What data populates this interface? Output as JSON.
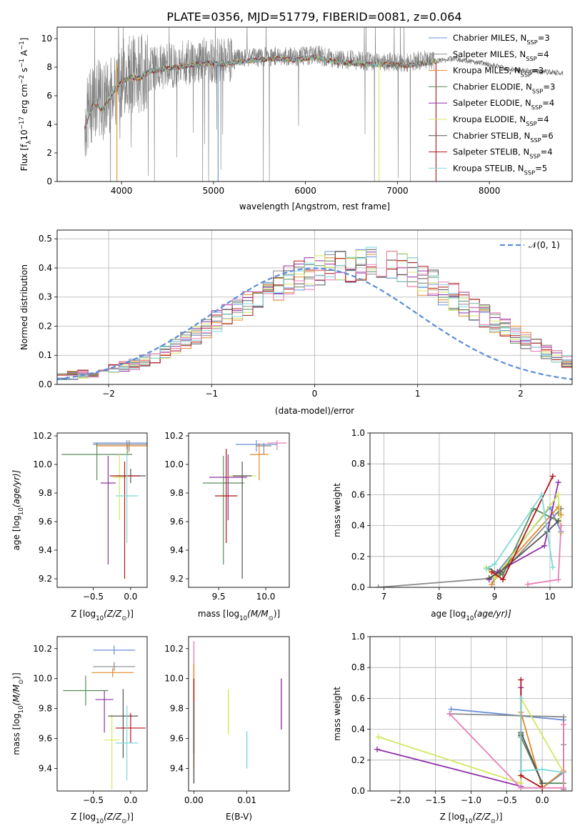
{
  "chart_data": [
    {
      "id": "spectrum",
      "type": "line",
      "title": "PLATE=0356, MJD=51779, FIBERID=0081, z=0.064",
      "xlabel": "wavelength [Angstrom, rest frame]",
      "ylabel": "Flux [f",
      "ylabel_sub": "λ",
      "ylabel_rest": "10",
      "ylabel_exp": "−17",
      "ylabel_units": " erg cm",
      "ylabel_units_exp": "−2",
      "ylabel_s": " s",
      "ylabel_s_exp": "−1",
      "ylabel_A": " A",
      "ylabel_A_exp": "−1",
      "ylabel_close": "]",
      "xlim": [
        3300,
        8900
      ],
      "ylim": [
        0,
        10.8
      ],
      "xticks": [
        "4000",
        "5000",
        "6000",
        "7000",
        "8000"
      ],
      "xtick_values": [
        4000,
        5000,
        6000,
        7000,
        8000
      ],
      "yticks": [
        "0",
        "2",
        "4",
        "6",
        "8",
        "10"
      ],
      "ytick_values": [
        0,
        2,
        4,
        6,
        8,
        10
      ],
      "grid": false,
      "legend_position": "top-right",
      "data_envelope": {
        "x": [
          3600,
          3700,
          3800,
          3900,
          4000,
          4100,
          4200,
          4300,
          4500,
          4700,
          4900,
          5100,
          5300,
          5500,
          5700,
          5900,
          6100,
          6300,
          6500,
          6700,
          6900,
          7100,
          7300,
          7400
        ],
        "y": [
          4.0,
          6.0,
          5.5,
          6.5,
          7.2,
          7.6,
          7.5,
          7.9,
          8.1,
          8.3,
          8.5,
          8.4,
          8.6,
          8.7,
          8.8,
          8.7,
          8.9,
          8.6,
          8.5,
          8.4,
          8.4,
          8.3,
          8.5,
          8.4
        ]
      },
      "model_envelope": {
        "x": [
          3600,
          3700,
          3800,
          3900,
          4000,
          4100,
          4200,
          4300,
          4500,
          4700,
          4900,
          5100,
          5300,
          5500,
          5700,
          5900,
          6100,
          6300,
          6500,
          6700,
          6900,
          7100,
          7300,
          7600,
          7900,
          8200,
          8500,
          8800
        ],
        "y": [
          3.8,
          5.5,
          5.0,
          6.2,
          7.0,
          7.3,
          7.2,
          7.7,
          7.9,
          8.1,
          8.3,
          8.2,
          8.4,
          8.5,
          8.6,
          8.5,
          8.7,
          8.4,
          8.3,
          8.2,
          8.2,
          8.1,
          8.3,
          8.6,
          8.3,
          7.9,
          7.7,
          7.6
        ]
      }
    },
    {
      "id": "residuals",
      "type": "histogram",
      "xlabel": "(data-model)/error",
      "ylabel": "Normed distribution",
      "xlim": [
        -2.5,
        2.5
      ],
      "ylim": [
        0,
        0.53
      ],
      "xticks": [
        "−2",
        "−1",
        "0",
        "1",
        "2"
      ],
      "xtick_values": [
        -2,
        -1,
        0,
        1,
        2
      ],
      "yticks": [
        "0.0",
        "0.1",
        "0.2",
        "0.3",
        "0.4",
        "0.5"
      ],
      "ytick_values": [
        0,
        0.1,
        0.2,
        0.3,
        0.4,
        0.5
      ],
      "grid": true,
      "legend_position": "top-right",
      "legend_label": "𝒩(0, 1)",
      "bin_width": 0.1,
      "bin_start": -2.5,
      "base_values": [
        0.03,
        0.03,
        0.035,
        0.04,
        0.05,
        0.055,
        0.06,
        0.07,
        0.08,
        0.095,
        0.11,
        0.13,
        0.15,
        0.17,
        0.19,
        0.22,
        0.24,
        0.26,
        0.28,
        0.3,
        0.32,
        0.34,
        0.355,
        0.37,
        0.38,
        0.39,
        0.4,
        0.405,
        0.41,
        0.42,
        0.43,
        0.42,
        0.41,
        0.4,
        0.38,
        0.36,
        0.34,
        0.32,
        0.3,
        0.28,
        0.255,
        0.235,
        0.21,
        0.19,
        0.17,
        0.15,
        0.13,
        0.11,
        0.095,
        0.08,
        0.07,
        0.06,
        0.05,
        0.045,
        0.04,
        0.035,
        0.03,
        0.03
      ]
    },
    {
      "id": "age_vs_Z",
      "type": "errorbar",
      "xlabel": "Z [log",
      "xlabel_sub": "10",
      "xlabel_rest": "(Z/Z",
      "xlabel_sun": "⊙",
      "xlabel_close": ")]",
      "ylabel": "age  [log",
      "ylabel_sub": "10",
      "ylabel_rest": "(age/yr)]",
      "xlim": [
        -0.98,
        0.22
      ],
      "ylim": [
        9.14,
        10.22
      ],
      "xticks": [
        "−0.5",
        "0.0"
      ],
      "xtick_values": [
        -0.5,
        0.0
      ],
      "yticks": [
        "9.2",
        "9.4",
        "9.6",
        "9.8",
        "10.0",
        "10.2"
      ],
      "ytick_values": [
        9.2,
        9.4,
        9.6,
        9.8,
        10.0,
        10.2
      ],
      "points": [
        {
          "x": -0.05,
          "y": 10.15,
          "xerr": 0.45,
          "yerr": [
            0.05,
            0.02
          ]
        },
        {
          "x": -0.02,
          "y": 10.14,
          "xerr": 0.48,
          "yerr": [
            0.05,
            0.03
          ]
        },
        {
          "x": -0.04,
          "y": 10.13,
          "xerr": 0.42,
          "yerr": [
            0.06,
            0.02
          ]
        },
        {
          "x": -0.45,
          "y": 10.07,
          "xerr": 0.47,
          "yerr": [
            0.18,
            0.08
          ]
        },
        {
          "x": -0.3,
          "y": 9.87,
          "xerr": 0.1,
          "yerr": [
            0.57,
            0.19
          ]
        },
        {
          "x": -0.15,
          "y": 9.91,
          "xerr": 0.09,
          "yerr": [
            0.3,
            0.16
          ]
        },
        {
          "x": 0.0,
          "y": 9.92,
          "xerr": 0.2,
          "yerr": [
            0.05,
            0.05
          ]
        },
        {
          "x": -0.08,
          "y": 9.92,
          "xerr": 0.2,
          "yerr": [
            0.72,
            0.1
          ]
        },
        {
          "x": -0.05,
          "y": 9.78,
          "xerr": 0.15,
          "yerr": [
            0.33,
            0.33
          ]
        }
      ]
    },
    {
      "id": "age_vs_mass",
      "type": "errorbar",
      "xlabel": "mass [log",
      "xlabel_sub": "10",
      "xlabel_rest": "(M/M",
      "xlabel_sun": "⊙",
      "xlabel_close": ")]",
      "xlim": [
        9.18,
        10.25
      ],
      "ylim": [
        9.14,
        10.22
      ],
      "xticks": [
        "9.5",
        "10.0"
      ],
      "xtick_values": [
        9.5,
        10.0
      ],
      "yticks": [
        "9.2",
        "9.4",
        "9.6",
        "9.8",
        "10.0",
        "10.2"
      ],
      "ytick_values": [
        9.2,
        9.4,
        9.6,
        9.8,
        10.0,
        10.2
      ],
      "points": [
        {
          "x": 10.12,
          "y": 10.15,
          "xerr": 0.1,
          "yerr": [
            0.05,
            0.02
          ]
        },
        {
          "x": 9.9,
          "y": 10.14,
          "xerr": 0.22,
          "yerr": [
            0.05,
            0.03
          ]
        },
        {
          "x": 9.98,
          "y": 10.13,
          "xerr": 0.08,
          "yerr": [
            0.06,
            0.02
          ]
        },
        {
          "x": 9.93,
          "y": 10.07,
          "xerr": 0.1,
          "yerr": [
            0.18,
            0.08
          ]
        },
        {
          "x": 9.55,
          "y": 9.87,
          "xerr": 0.22,
          "yerr": [
            0.57,
            0.19
          ]
        },
        {
          "x": 9.6,
          "y": 9.91,
          "xerr": 0.2,
          "yerr": [
            0.3,
            0.16
          ]
        },
        {
          "x": 9.75,
          "y": 9.92,
          "xerr": 0.15,
          "yerr": [
            0.05,
            0.05
          ]
        },
        {
          "x": 9.75,
          "y": 9.92,
          "xerr": 0.1,
          "yerr": [
            0.72,
            0.1
          ]
        },
        {
          "x": 9.58,
          "y": 9.78,
          "xerr": 0.12,
          "yerr": [
            0.33,
            0.33
          ]
        }
      ]
    },
    {
      "id": "weight_vs_age",
      "type": "line",
      "xlabel": "age  [log",
      "xlabel_sub": "10",
      "xlabel_rest": "(age/yr)]",
      "ylabel": "mass weight",
      "xlim": [
        6.75,
        10.4
      ],
      "ylim": [
        0,
        1
      ],
      "xticks": [
        "7",
        "8",
        "9",
        "10"
      ],
      "xtick_values": [
        7,
        8,
        9,
        10
      ],
      "yticks": [
        "0.0",
        "0.2",
        "0.4",
        "0.6",
        "0.8",
        "1.0"
      ],
      "ytick_values": [
        0,
        0.2,
        0.4,
        0.6,
        0.8,
        1.0
      ],
      "grid": true,
      "series": [
        {
          "x": [
            8.95,
            9.05,
            10.0,
            10.2
          ],
          "y": [
            0.02,
            0.1,
            0.52,
            0.36
          ]
        },
        {
          "x": [
            6.9,
            9.0,
            9.1,
            10.2,
            10.15
          ],
          "y": [
            0.0,
            0.06,
            0.08,
            0.51,
            0.48
          ]
        },
        {
          "x": [
            8.95,
            9.1,
            10.15,
            10.2
          ],
          "y": [
            0.02,
            0.1,
            0.52,
            0.47
          ]
        },
        {
          "x": [
            8.9,
            9.15,
            9.7,
            10.15
          ],
          "y": [
            0.12,
            0.08,
            0.51,
            0.43
          ]
        },
        {
          "x": [
            8.9,
            9.05,
            9.9,
            10.15
          ],
          "y": [
            0.05,
            0.1,
            0.27,
            0.68
          ]
        },
        {
          "x": [
            8.85,
            9.0,
            10.15,
            10.2
          ],
          "y": [
            0.13,
            0.06,
            0.6,
            0.35
          ]
        },
        {
          "x": [
            8.9,
            9.1,
            9.95,
            10.15
          ],
          "y": [
            0.06,
            0.1,
            0.36,
            0.43
          ]
        },
        {
          "x": [
            8.95,
            9.15,
            10.05
          ],
          "y": [
            0.1,
            0.05,
            0.72
          ]
        },
        {
          "x": [
            8.85,
            9.0,
            9.85,
            10.05
          ],
          "y": [
            0.12,
            0.15,
            0.6,
            0.13
          ]
        },
        {
          "x": [
            9.6,
            10.15,
            10.2
          ],
          "y": [
            0.02,
            0.05,
            0.4
          ]
        }
      ]
    },
    {
      "id": "mass_vs_Z",
      "type": "errorbar",
      "xlabel": "Z [log",
      "xlabel_sub": "10",
      "xlabel_rest": "(Z/Z",
      "xlabel_sun": "⊙",
      "xlabel_close": ")]",
      "ylabel": "mass [log",
      "ylabel_sub": "10",
      "ylabel_rest": "(M/M",
      "ylabel_sun": "⊙",
      "ylabel_close": ")]",
      "xlim": [
        -0.98,
        0.22
      ],
      "ylim": [
        9.25,
        10.28
      ],
      "xticks": [
        "−0.5",
        "0.0"
      ],
      "xtick_values": [
        -0.5,
        0.0
      ],
      "yticks": [
        "9.4",
        "9.6",
        "9.8",
        "10.0",
        "10.2"
      ],
      "ytick_values": [
        9.4,
        9.6,
        9.8,
        10.0,
        10.2
      ],
      "points": [
        {
          "x": -0.22,
          "y": 10.19,
          "xerr": 0.28,
          "yerr": [
            0.03,
            0.03
          ]
        },
        {
          "x": -0.22,
          "y": 10.08,
          "xerr": 0.28,
          "yerr": [
            0.03,
            0.03
          ]
        },
        {
          "x": -0.24,
          "y": 10.04,
          "xerr": 0.28,
          "yerr": [
            0.03,
            0.03
          ]
        },
        {
          "x": -0.6,
          "y": 9.92,
          "xerr": 0.3,
          "yerr": [
            0.1,
            0.1
          ]
        },
        {
          "x": -0.35,
          "y": 9.86,
          "xerr": 0.12,
          "yerr": [
            0.22,
            0.06
          ]
        },
        {
          "x": -0.25,
          "y": 9.59,
          "xerr": 0.1,
          "yerr": [
            0.33,
            0.17
          ]
        },
        {
          "x": -0.1,
          "y": 9.75,
          "xerr": 0.2,
          "yerr": [
            0.28,
            0.18
          ]
        },
        {
          "x": 0.0,
          "y": 9.67,
          "xerr": 0.2,
          "yerr": [
            0.1,
            0.1
          ]
        },
        {
          "x": -0.05,
          "y": 9.57,
          "xerr": 0.15,
          "yerr": [
            0.25,
            0.25
          ]
        }
      ]
    },
    {
      "id": "mass_vs_ebv",
      "type": "errorbar",
      "xlabel": "E(B-V)",
      "xlim": [
        -0.001,
        0.018
      ],
      "ylim": [
        9.25,
        10.28
      ],
      "xticks": [
        "0.00",
        "0.01"
      ],
      "xtick_values": [
        0.0,
        0.01
      ],
      "yticks": [
        "9.4",
        "9.6",
        "9.8",
        "10.0",
        "10.2"
      ],
      "ytick_values": [
        9.4,
        9.6,
        9.8,
        10.0,
        10.2
      ],
      "points": [
        {
          "x": 0.0,
          "y": 10.1,
          "xerr": 0.0,
          "yerr": [
            0.1,
            0.15
          ]
        },
        {
          "x": 0.0,
          "y": 9.9,
          "xerr": 0.0,
          "yerr": [
            0.5,
            0.2
          ]
        },
        {
          "x": 0.0,
          "y": 9.7,
          "xerr": 0.0,
          "yerr": [
            0.2,
            0.3
          ]
        },
        {
          "x": 0.0,
          "y": 9.55,
          "xerr": 0.0,
          "yerr": [
            0.25,
            0.3
          ]
        },
        {
          "x": 0.0065,
          "y": 9.78,
          "xerr": 0.0,
          "yerr": [
            0.15,
            0.15
          ]
        },
        {
          "x": 0.0165,
          "y": 9.83,
          "xerr": 0.0,
          "yerr": [
            0.17,
            0.17
          ]
        },
        {
          "x": 0.01,
          "y": 9.55,
          "xerr": 0.0,
          "yerr": [
            0.15,
            0.1
          ]
        }
      ]
    },
    {
      "id": "weight_vs_Z",
      "type": "line",
      "xlabel": "Z [log",
      "xlabel_sub": "10",
      "xlabel_rest": "(Z/Z",
      "xlabel_sun": "⊙",
      "xlabel_close": ")]",
      "ylabel": "mass weight",
      "xlim": [
        -2.42,
        0.42
      ],
      "ylim": [
        0,
        1
      ],
      "xticks": [
        "−2.0",
        "−1.5",
        "−1.0",
        "−0.5",
        "0.0"
      ],
      "xtick_values": [
        -2.0,
        -1.5,
        -1.0,
        -0.5,
        0.0
      ],
      "yticks": [
        "0.0",
        "0.2",
        "0.4",
        "0.6",
        "0.8",
        "1.0"
      ],
      "ytick_values": [
        0,
        0.2,
        0.4,
        0.6,
        0.8,
        1.0
      ],
      "grid": true,
      "series": [
        {
          "x": [
            -1.28,
            0.3,
            0.3,
            0.0
          ],
          "y": [
            0.53,
            0.46,
            0.12,
            0.02
          ]
        },
        {
          "x": [
            -1.3,
            0.3,
            0.3,
            0.3
          ],
          "y": [
            0.5,
            0.48,
            0.3,
            0.01
          ]
        },
        {
          "x": [
            -0.3,
            0.0,
            0.3
          ],
          "y": [
            0.51,
            0.02,
            0.13
          ]
        },
        {
          "x": [
            -0.3,
            -0.3,
            0.0,
            0.3
          ],
          "y": [
            0.37,
            0.35,
            0.05,
            0.05
          ]
        },
        {
          "x": [
            -2.32,
            -0.3,
            -0.3
          ],
          "y": [
            0.27,
            0.03,
            0.67
          ]
        },
        {
          "x": [
            -2.3,
            -0.3,
            -0.3,
            0.3
          ],
          "y": [
            0.35,
            0.05,
            0.6,
            0.12
          ]
        },
        {
          "x": [
            -0.3,
            -0.3,
            0.0
          ],
          "y": [
            0.36,
            0.38,
            0.05
          ]
        },
        {
          "x": [
            -0.3,
            -0.3,
            0.0
          ],
          "y": [
            0.72,
            0.1,
            0.02
          ]
        },
        {
          "x": [
            -0.3,
            -0.3,
            0.0,
            0.3
          ],
          "y": [
            0.6,
            0.13,
            0.14,
            0.12
          ]
        },
        {
          "x": [
            -1.3,
            -0.3,
            0.3,
            0.3
          ],
          "y": [
            0.5,
            0.02,
            0.02,
            0.43
          ]
        }
      ]
    }
  ],
  "legend": [
    {
      "label": "Chabrier MILES, N",
      "sub": "SSP",
      "suffix": "=3",
      "color": "#6b8fd8"
    },
    {
      "label": "Salpeter MILES, N",
      "sub": "SSP",
      "suffix": "=4",
      "color": "#8a8a8a"
    },
    {
      "label": "Kroupa MILES, N",
      "sub": "SSP",
      "suffix": "=3",
      "color": "#e08a2b"
    },
    {
      "label": "Chabrier ELODIE, N",
      "sub": "SSP",
      "suffix": "=3",
      "color": "#5a8a5a"
    },
    {
      "label": "Salpeter ELODIE, N",
      "sub": "SSP",
      "suffix": "=4",
      "color": "#9030a8"
    },
    {
      "label": "Kroupa ELODIE, N",
      "sub": "SSP",
      "suffix": "=4",
      "color": "#d2e860"
    },
    {
      "label": "Chabrier STELIB, N",
      "sub": "SSP",
      "suffix": "=6",
      "color": "#555555"
    },
    {
      "label": "Salpeter STELIB, N",
      "sub": "SSP",
      "suffix": "=4",
      "color": "#b01515"
    },
    {
      "label": "Kroupa STELIB, N",
      "sub": "SSP",
      "suffix": "=5",
      "color": "#7fd8d8"
    }
  ],
  "colors": {
    "data": "#808080",
    "normal": "#5b8dd6",
    "pink": "#e880b8",
    "series_cycle": [
      "#6b8fd8",
      "#8a8a8a",
      "#e08a2b",
      "#5a8a5a",
      "#9030a8",
      "#d2e860",
      "#555555",
      "#b01515",
      "#7fd8d8",
      "#e880b8"
    ]
  }
}
